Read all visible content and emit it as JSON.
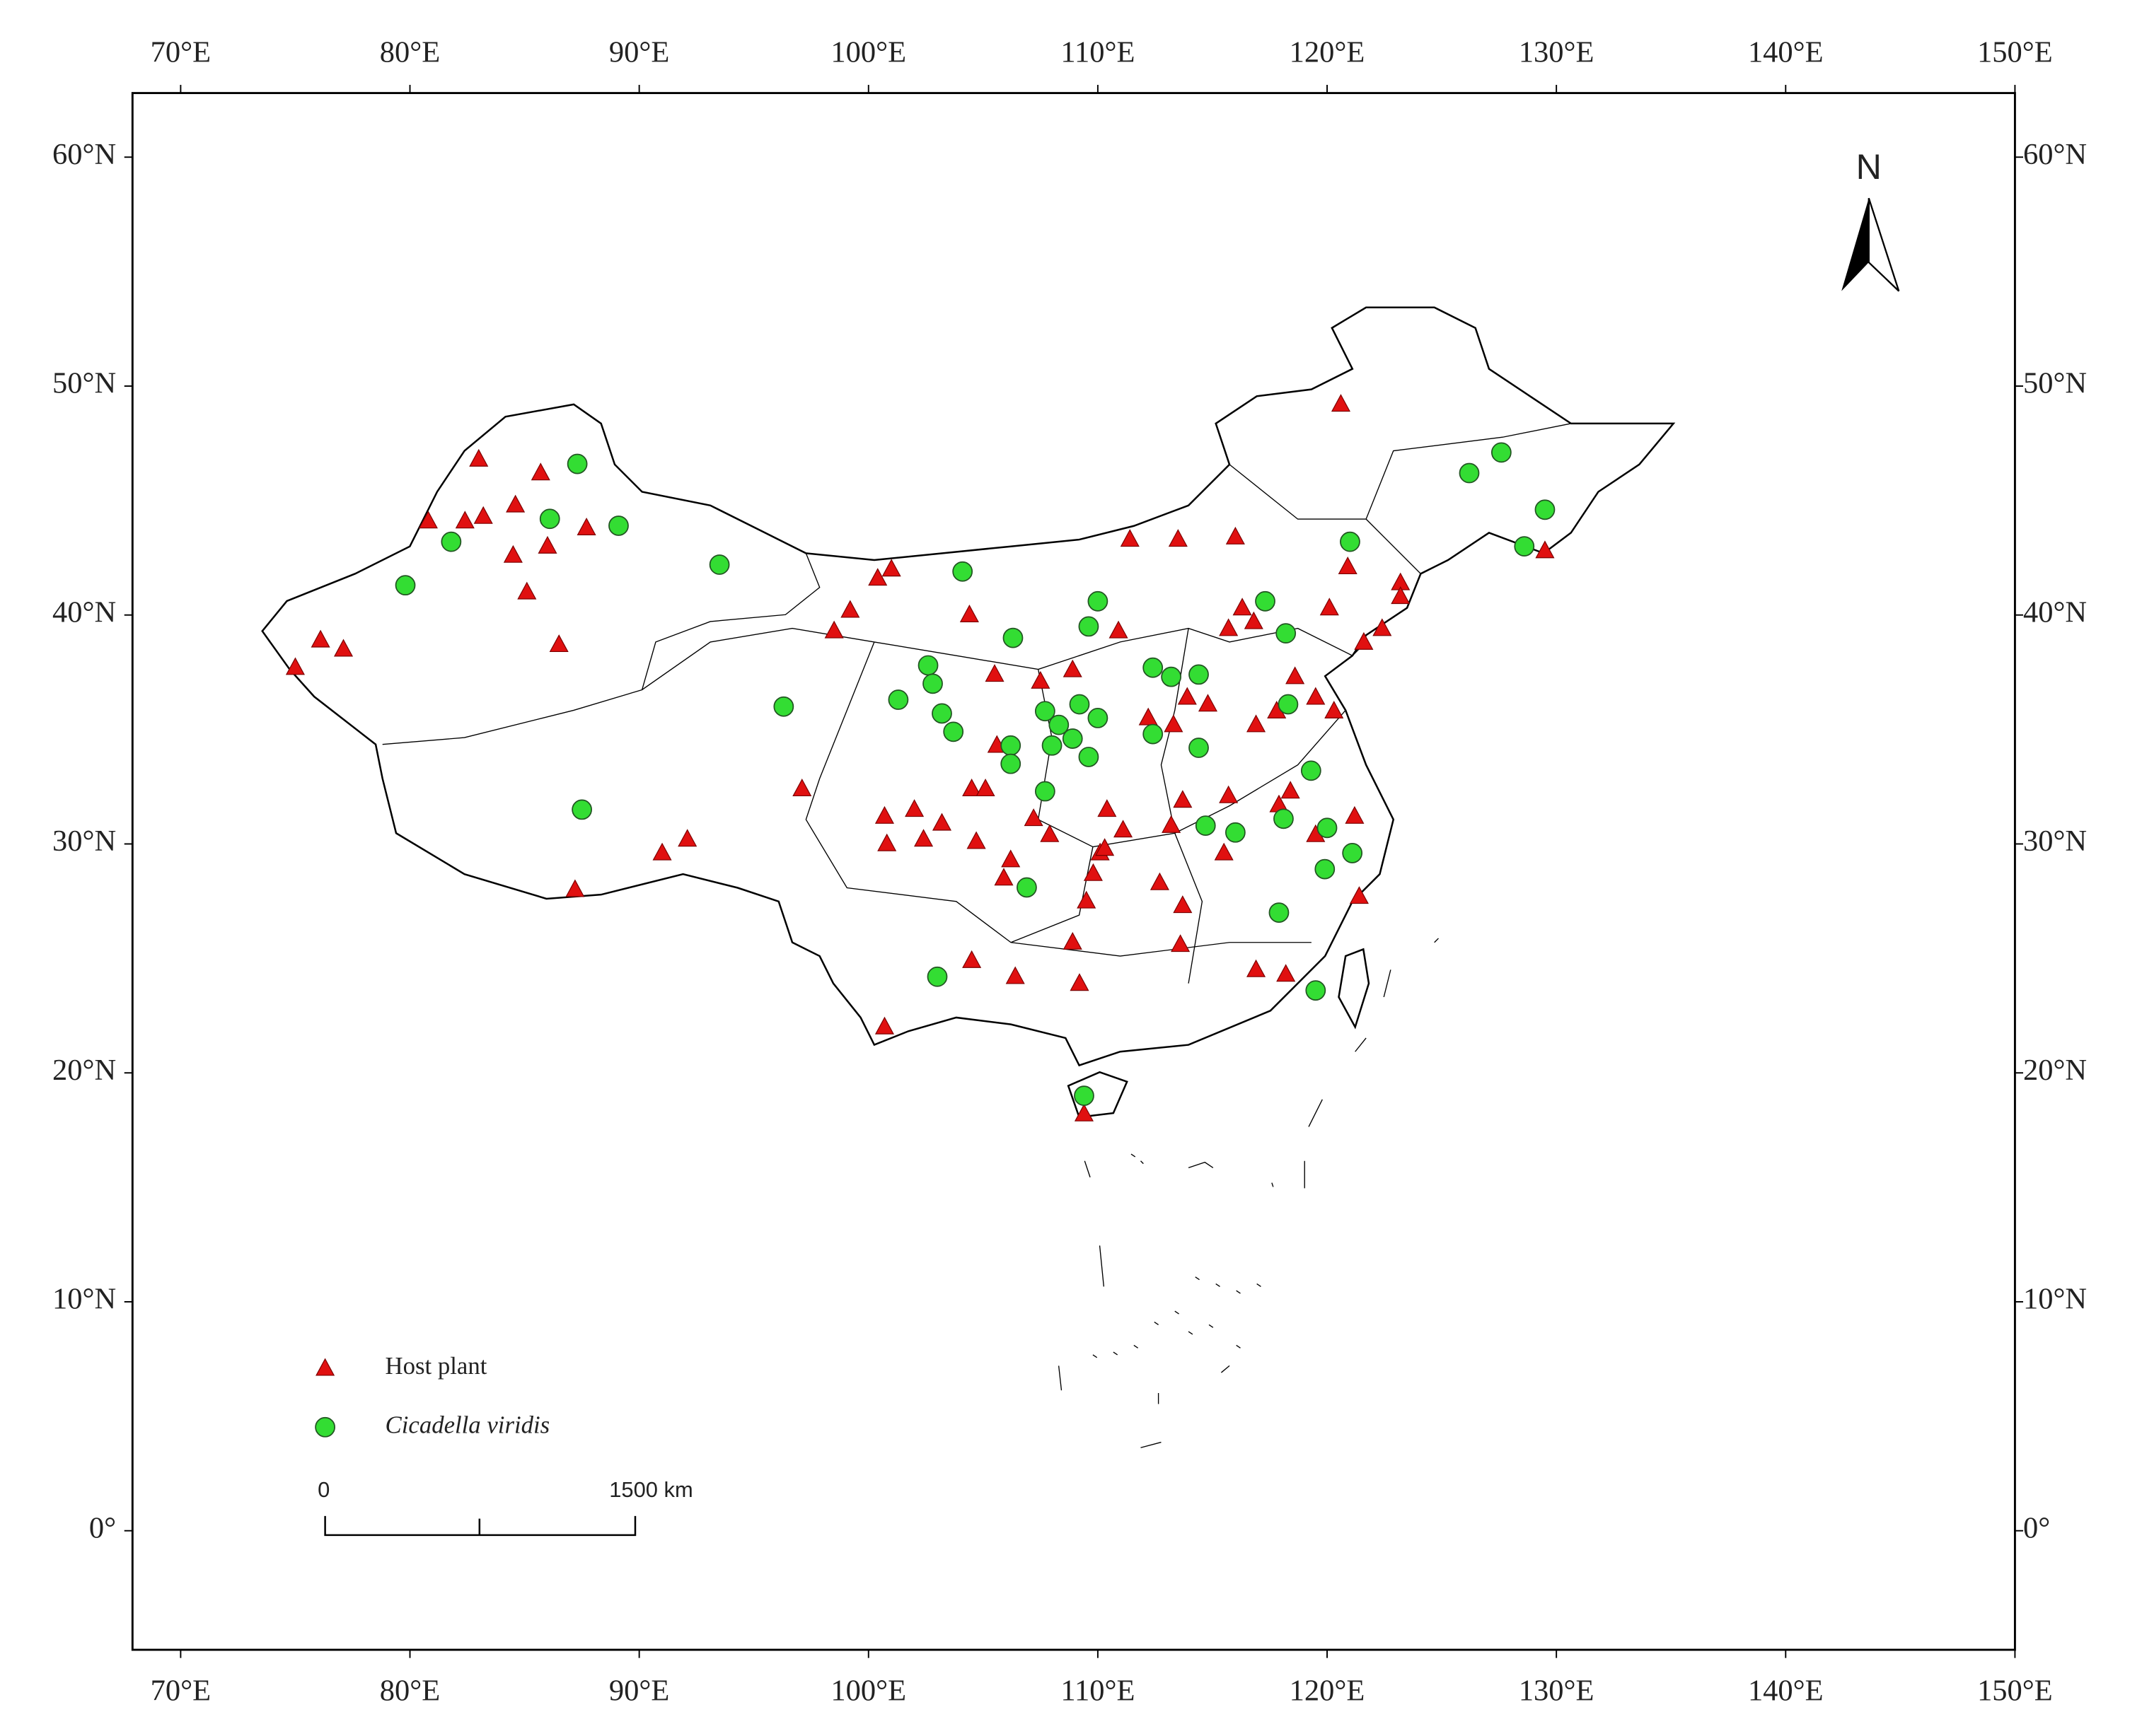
{
  "chart_data": {
    "type": "scatter",
    "xlim": [
      67.9,
      150
    ],
    "ylim": [
      -5.2,
      62.8
    ],
    "xticks": [
      {
        "value": 70,
        "label": "70°E"
      },
      {
        "value": 80,
        "label": "80°E"
      },
      {
        "value": 90,
        "label": "90°E"
      },
      {
        "value": 100,
        "label": "100°E"
      },
      {
        "value": 110,
        "label": "110°E"
      },
      {
        "value": 120,
        "label": "120°E"
      },
      {
        "value": 130,
        "label": "130°E"
      },
      {
        "value": 140,
        "label": "140°E"
      },
      {
        "value": 150,
        "label": "150°E"
      }
    ],
    "yticks": [
      {
        "value": 0,
        "label": "0°"
      },
      {
        "value": 10,
        "label": "10°N"
      },
      {
        "value": 20,
        "label": "20°N"
      },
      {
        "value": 30,
        "label": "30°N"
      },
      {
        "value": 40,
        "label": "40°N"
      },
      {
        "value": 50,
        "label": "50°N"
      },
      {
        "value": 60,
        "label": "60°N"
      }
    ],
    "legend": "lower left",
    "annotations": {
      "north": "N",
      "scale_start": "0",
      "scale_end": "1500 km"
    },
    "series": [
      {
        "name": "Host plant",
        "color": "#e01010",
        "marker": "triangle",
        "x": [
          75.0,
          76.1,
          77.1,
          80.8,
          82.4,
          83.2,
          83.0,
          84.6,
          85.7,
          84.5,
          85.1,
          86.0,
          87.7,
          86.5,
          87.2,
          91.0,
          92.1,
          97.1,
          98.5,
          99.2,
          100.4,
          101.0,
          100.7,
          100.8,
          102.0,
          103.2,
          102.4,
          100.7,
          104.4,
          105.5,
          105.6,
          104.5,
          105.1,
          104.7,
          106.2,
          105.9,
          104.5,
          106.4,
          107.2,
          107.9,
          108.9,
          109.2,
          109.5,
          109.8,
          110.1,
          110.4,
          111.1,
          111.4,
          110.9,
          113.5,
          116.0,
          120.6,
          113.9,
          113.3,
          114.8,
          115.7,
          116.3,
          116.8,
          116.9,
          117.8,
          118.6,
          119.5,
          120.3,
          120.1,
          121.6,
          122.4,
          123.2,
          123.2,
          120.9,
          129.5,
          113.7,
          113.2,
          112.7,
          113.7,
          113.6,
          115.5,
          115.7,
          117.9,
          116.9,
          118.2,
          118.4,
          119.5,
          121.4,
          121.2,
          109.4,
          110.3,
          112.2,
          108.9,
          107.5
        ],
        "y": [
          37.7,
          38.9,
          38.5,
          44.1,
          44.1,
          44.3,
          46.8,
          44.8,
          46.2,
          42.6,
          41.0,
          43.0,
          43.8,
          38.7,
          28.0,
          29.6,
          30.2,
          32.4,
          39.3,
          40.2,
          41.6,
          42.0,
          31.2,
          30.0,
          31.5,
          30.9,
          30.2,
          22.0,
          40.0,
          37.4,
          34.3,
          32.4,
          32.4,
          30.1,
          29.3,
          28.5,
          24.9,
          24.2,
          31.1,
          30.4,
          25.7,
          23.9,
          27.5,
          28.7,
          29.6,
          31.5,
          30.6,
          43.3,
          39.3,
          43.3,
          43.4,
          49.2,
          36.4,
          35.2,
          36.1,
          39.4,
          40.3,
          39.7,
          35.2,
          35.8,
          37.3,
          36.4,
          35.8,
          40.3,
          38.8,
          39.4,
          41.4,
          40.8,
          42.1,
          42.8,
          31.9,
          30.8,
          28.3,
          27.3,
          25.6,
          29.6,
          32.1,
          31.7,
          24.5,
          24.3,
          32.3,
          30.4,
          27.7,
          31.2,
          18.2,
          29.8,
          35.5,
          37.6,
          37.1
        ]
      },
      {
        "name": "Cicadella viridis",
        "color": "#33dd33",
        "marker": "circle",
        "x": [
          79.8,
          81.8,
          86.1,
          87.3,
          89.1,
          93.5,
          96.3,
          87.5,
          104.1,
          110.0,
          109.6,
          106.3,
          102.6,
          102.8,
          101.3,
          103.2,
          103.7,
          106.2,
          106.2,
          107.7,
          108.3,
          108.9,
          109.2,
          110.0,
          108.0,
          109.6,
          107.7,
          106.9,
          103.0,
          109.4,
          112.4,
          113.2,
          114.4,
          112.4,
          114.4,
          117.3,
          118.2,
          118.3,
          119.3,
          118.1,
          116.0,
          114.7,
          120.0,
          121.1,
          119.9,
          117.9,
          119.5,
          121.0,
          126.2,
          127.6,
          129.5,
          128.6
        ],
        "y": [
          41.3,
          43.2,
          44.2,
          46.6,
          43.9,
          42.2,
          36.0,
          31.5,
          41.9,
          40.6,
          39.5,
          39.0,
          37.8,
          37.0,
          36.3,
          35.7,
          34.9,
          34.3,
          33.5,
          35.8,
          35.2,
          34.6,
          36.1,
          35.5,
          34.3,
          33.8,
          32.3,
          28.1,
          24.2,
          19.0,
          37.7,
          37.3,
          37.4,
          34.8,
          34.2,
          40.6,
          39.2,
          36.1,
          33.2,
          31.1,
          30.5,
          30.8,
          30.7,
          29.6,
          28.9,
          27.0,
          23.6,
          43.2,
          46.2,
          47.1,
          44.6,
          43.0
        ]
      }
    ]
  }
}
